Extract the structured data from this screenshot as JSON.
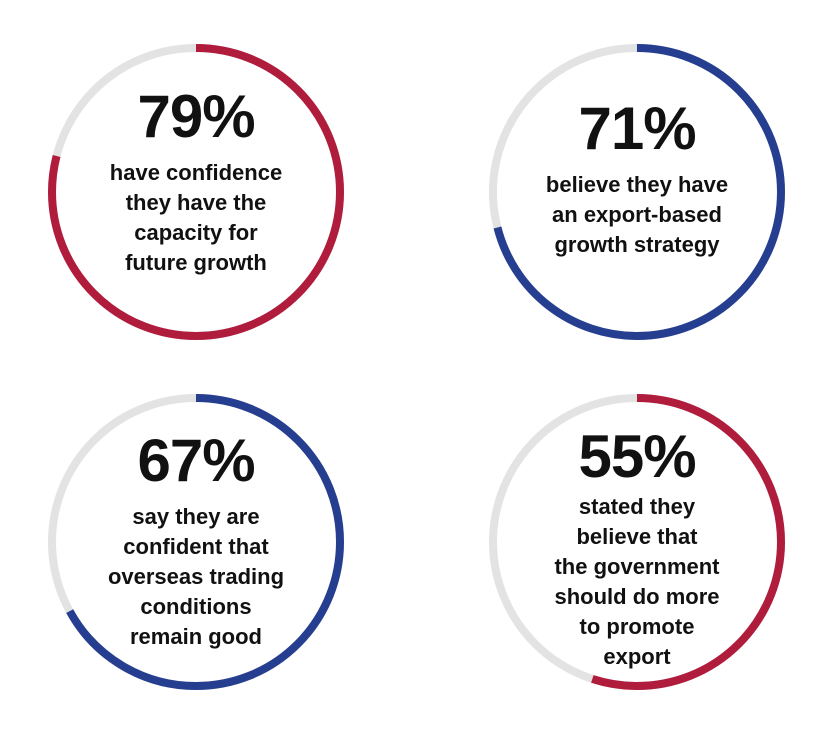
{
  "chart_data": [
    {
      "type": "pie",
      "value": 79,
      "label": "79%",
      "description": "have confidence\nthey have the\ncapacity for\nfuture growth",
      "color": "#b01c3c",
      "track_color": "#e3e3e3"
    },
    {
      "type": "pie",
      "value": 71,
      "label": "71%",
      "description": "believe they have\nan export-based\ngrowth strategy",
      "color": "#253e90",
      "track_color": "#e3e3e3"
    },
    {
      "type": "pie",
      "value": 67,
      "label": "67%",
      "description": "say they are\nconfident that\noverseas trading\nconditions\nremain good",
      "color": "#253e90",
      "track_color": "#e3e3e3"
    },
    {
      "type": "pie",
      "value": 55,
      "label": "55%",
      "description": "stated they\nbelieve that\nthe government\nshould do more\nto promote\nexport",
      "color": "#b01c3c",
      "track_color": "#e3e3e3"
    }
  ]
}
